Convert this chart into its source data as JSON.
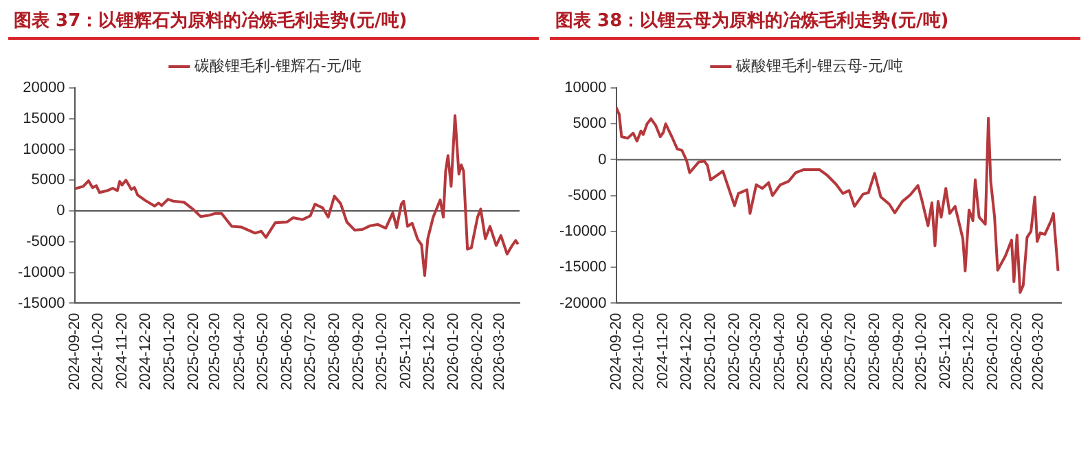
{
  "chart_data": [
    {
      "type": "line",
      "title": "图表 37：以锂辉石为原料的冶炼毛利走势(元/吨)",
      "legend": "top",
      "grid": false,
      "marker": "none",
      "ref_lines": [
        {
          "axis": "y",
          "value": 0
        }
      ],
      "xlim": [
        "2024-09-20",
        "2026-04-15"
      ],
      "xticks": [
        "2024-09-20",
        "2024-10-20",
        "2024-11-20",
        "2024-12-20",
        "2025-01-20",
        "2025-02-20",
        "2025-03-20",
        "2025-04-20",
        "2025-05-20",
        "2025-06-20",
        "2025-07-20",
        "2025-08-20",
        "2025-09-20",
        "2025-10-20",
        "2025-11-20",
        "2025-12-20",
        "2026-01-20",
        "2026-02-20",
        "2026-03-20"
      ],
      "ylim": [
        -15000,
        20000
      ],
      "yticks": [
        -15000,
        -10000,
        -5000,
        0,
        5000,
        10000,
        15000,
        20000
      ],
      "series": [
        {
          "name": "碳酸锂毛利-锂辉石-元/吨",
          "color": "#b5383c",
          "x": [
            "2024-09-20",
            "2024-10-01",
            "2024-10-08",
            "2024-10-13",
            "2024-10-18",
            "2024-10-22",
            "2024-11-01",
            "2024-11-08",
            "2024-11-14",
            "2024-11-17",
            "2024-11-20",
            "2024-11-25",
            "2024-12-02",
            "2024-12-06",
            "2024-12-10",
            "2024-12-20",
            "2025-01-01",
            "2025-01-06",
            "2025-01-10",
            "2025-01-18",
            "2025-01-25",
            "2025-02-08",
            "2025-02-20",
            "2025-03-01",
            "2025-03-12",
            "2025-03-20",
            "2025-03-28",
            "2025-04-10",
            "2025-04-22",
            "2025-05-10",
            "2025-05-18",
            "2025-05-24",
            "2025-06-05",
            "2025-06-20",
            "2025-06-28",
            "2025-07-10",
            "2025-07-20",
            "2025-07-26",
            "2025-08-05",
            "2025-08-12",
            "2025-08-20",
            "2025-08-28",
            "2025-09-05",
            "2025-09-15",
            "2025-09-25",
            "2025-10-05",
            "2025-10-15",
            "2025-10-25",
            "2025-11-03",
            "2025-11-08",
            "2025-11-14",
            "2025-11-17",
            "2025-11-22",
            "2025-11-28",
            "2025-12-05",
            "2025-12-10",
            "2025-12-14",
            "2025-12-18",
            "2025-12-25",
            "2026-01-03",
            "2026-01-07",
            "2026-01-10",
            "2026-01-13",
            "2026-01-17",
            "2026-01-22",
            "2026-01-27",
            "2026-01-30",
            "2026-02-02",
            "2026-02-07",
            "2026-02-12",
            "2026-02-20",
            "2026-02-24",
            "2026-03-02",
            "2026-03-08",
            "2026-03-16",
            "2026-03-22",
            "2026-03-30",
            "2026-04-05",
            "2026-04-10",
            "2026-04-13"
          ],
          "values": [
            3600,
            4000,
            4900,
            3800,
            4100,
            3000,
            3300,
            3700,
            3300,
            4800,
            4200,
            5000,
            3500,
            3800,
            2600,
            1700,
            800,
            1300,
            900,
            1900,
            1600,
            1400,
            200,
            -900,
            -700,
            -400,
            -400,
            -2500,
            -2600,
            -3600,
            -3300,
            -4300,
            -1900,
            -1800,
            -1100,
            -1400,
            -800,
            1100,
            500,
            -1000,
            2400,
            1200,
            -1800,
            -3100,
            -3000,
            -2400,
            -2200,
            -2800,
            -300,
            -2700,
            1100,
            1600,
            -2500,
            -2000,
            -4600,
            -5500,
            -10500,
            -4500,
            -1000,
            1800,
            -1000,
            6500,
            9000,
            4000,
            15500,
            6000,
            7500,
            6500,
            -6200,
            -6000,
            -1000,
            300,
            -4500,
            -2500,
            -5600,
            -4000,
            -7000,
            -5700,
            -4800,
            -5400
          ]
        }
      ]
    },
    {
      "type": "line",
      "title": "图表 38：以锂云母为原料的冶炼毛利走势(元/吨)",
      "legend": "top",
      "grid": false,
      "marker": "none",
      "ref_lines": [
        {
          "axis": "y",
          "value": 0
        }
      ],
      "xlim": [
        "2024-09-20",
        "2026-04-18"
      ],
      "xticks": [
        "2024-09-20",
        "2024-10-20",
        "2024-11-20",
        "2024-12-20",
        "2025-01-20",
        "2025-02-20",
        "2025-03-20",
        "2025-04-20",
        "2025-05-20",
        "2025-06-20",
        "2025-07-20",
        "2025-08-20",
        "2025-09-20",
        "2025-10-20",
        "2025-11-20",
        "2025-12-20",
        "2026-01-20",
        "2026-02-20",
        "2026-03-20"
      ],
      "ylim": [
        -20000,
        10000
      ],
      "yticks": [
        -20000,
        -15000,
        -10000,
        -5000,
        0,
        5000,
        10000
      ],
      "series": [
        {
          "name": "碳酸锂毛利-锂云母-元/吨",
          "color": "#b5383c",
          "x": [
            "2024-09-20",
            "2024-09-24",
            "2024-09-27",
            "2024-10-05",
            "2024-10-12",
            "2024-10-17",
            "2024-10-22",
            "2024-10-25",
            "2024-10-30",
            "2024-11-04",
            "2024-11-10",
            "2024-11-16",
            "2024-11-20",
            "2024-11-23",
            "2024-12-01",
            "2024-12-08",
            "2024-12-14",
            "2024-12-20",
            "2024-12-24",
            "2025-01-05",
            "2025-01-12",
            "2025-01-16",
            "2025-01-20",
            "2025-02-05",
            "2025-02-20",
            "2025-02-25",
            "2025-03-08",
            "2025-03-12",
            "2025-03-20",
            "2025-03-28",
            "2025-04-05",
            "2025-04-10",
            "2025-04-20",
            "2025-05-01",
            "2025-05-10",
            "2025-05-20",
            "2025-06-10",
            "2025-06-20",
            "2025-07-01",
            "2025-07-10",
            "2025-07-18",
            "2025-07-25",
            "2025-08-05",
            "2025-08-12",
            "2025-08-20",
            "2025-08-28",
            "2025-09-08",
            "2025-09-15",
            "2025-09-25",
            "2025-10-05",
            "2025-10-15",
            "2025-10-20",
            "2025-10-28",
            "2025-11-02",
            "2025-11-06",
            "2025-11-10",
            "2025-11-14",
            "2025-11-20",
            "2025-11-25",
            "2025-12-02",
            "2025-12-12",
            "2025-12-15",
            "2025-12-20",
            "2025-12-25",
            "2025-12-28",
            "2026-01-02",
            "2026-01-10",
            "2026-01-14",
            "2026-01-17",
            "2026-01-22",
            "2026-01-26",
            "2026-02-05",
            "2026-02-13",
            "2026-02-16",
            "2026-02-20",
            "2026-02-24",
            "2026-02-28",
            "2026-03-05",
            "2026-03-10",
            "2026-03-15",
            "2026-03-18",
            "2026-03-22",
            "2026-03-28",
            "2026-04-05",
            "2026-04-08",
            "2026-04-14"
          ],
          "values": [
            7300,
            6300,
            3200,
            3000,
            3700,
            2600,
            4000,
            3500,
            5000,
            5700,
            4800,
            3200,
            3800,
            5000,
            3200,
            1500,
            1300,
            -100,
            -1800,
            -300,
            -200,
            -800,
            -2800,
            -1600,
            -6400,
            -4700,
            -4200,
            -7500,
            -3500,
            -4000,
            -3200,
            -5000,
            -3500,
            -3000,
            -1800,
            -1400,
            -1400,
            -2200,
            -3400,
            -4700,
            -4300,
            -6500,
            -4800,
            -4600,
            -1900,
            -5200,
            -6200,
            -7400,
            -5800,
            -4900,
            -3600,
            -5600,
            -9200,
            -6000,
            -12000,
            -5800,
            -8000,
            -4000,
            -7500,
            -6500,
            -11000,
            -15500,
            -7000,
            -8500,
            -2800,
            -8000,
            -9000,
            5800,
            -3000,
            -8000,
            -15400,
            -13400,
            -11200,
            -17000,
            -10500,
            -18500,
            -17500,
            -10800,
            -10000,
            -5200,
            -11400,
            -10200,
            -10400,
            -8500,
            -7500,
            -15500
          ]
        }
      ]
    }
  ]
}
